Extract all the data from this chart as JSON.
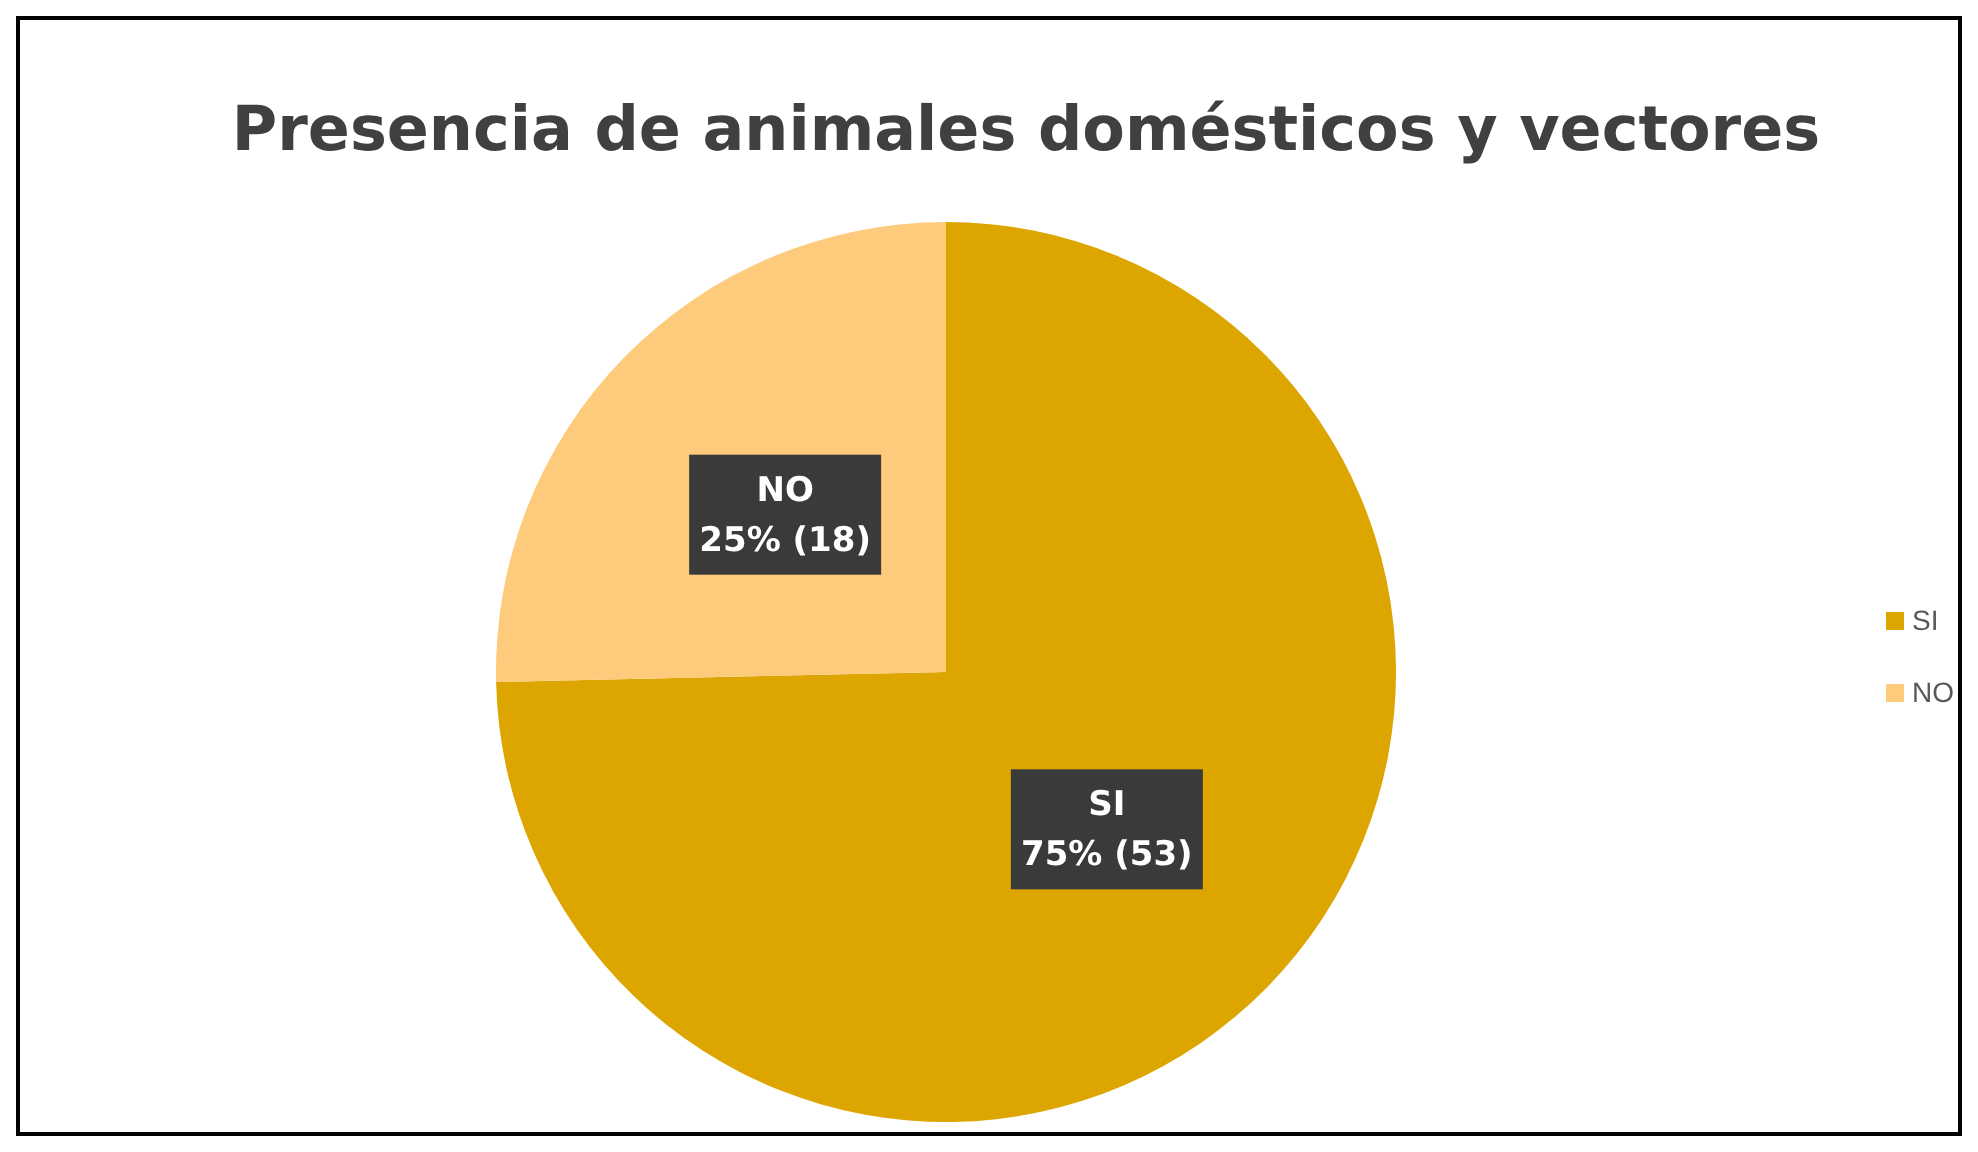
{
  "chart_data": {
    "type": "pie",
    "title": "Presencia de animales domésticos y vectores",
    "categories": [
      "SI",
      "NO"
    ],
    "values": [
      53,
      18
    ],
    "colors": [
      "#dca500",
      "#fdcb7b"
    ],
    "value_labels": [
      "75% (53)",
      "25% (18)"
    ],
    "legend": "right"
  }
}
